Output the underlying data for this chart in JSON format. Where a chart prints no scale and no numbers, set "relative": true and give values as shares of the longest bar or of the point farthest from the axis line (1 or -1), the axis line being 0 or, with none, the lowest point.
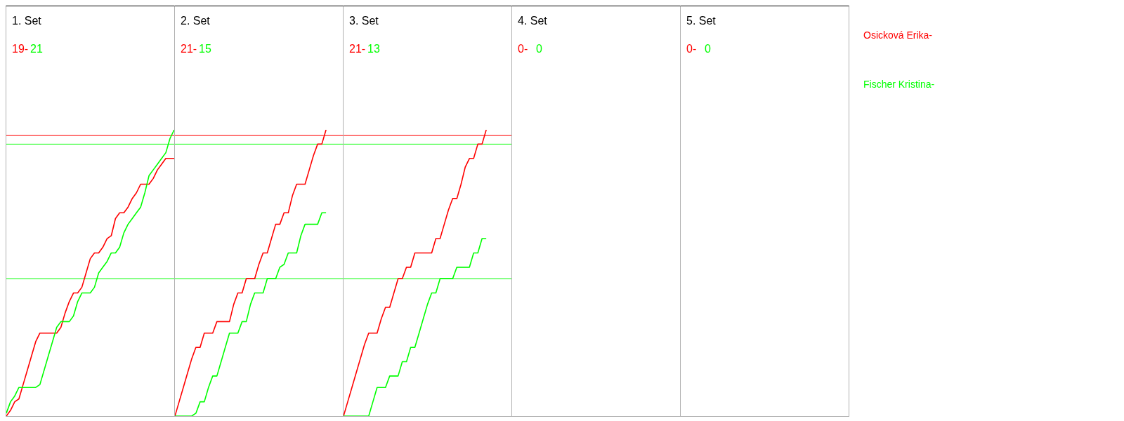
{
  "chart_data": [
    {
      "type": "line",
      "title": "1. Set",
      "annotations": [
        "19-",
        "21"
      ],
      "categories": [
        null,
        null,
        null,
        null,
        null,
        null,
        null,
        null,
        null,
        null,
        null,
        null,
        null,
        null,
        null,
        null,
        null,
        null,
        null,
        null,
        null,
        null,
        null,
        null,
        null,
        null,
        null,
        null,
        null,
        null,
        null,
        null,
        null,
        null,
        null,
        null,
        null,
        null,
        null,
        null,
        null
      ],
      "relative": true,
      "tick_labels": false,
      "legend": "right",
      "series": [
        {
          "name": "Osicková Erika-",
          "color": "#ff0000",
          "values": [
            0,
            0.02,
            0.05,
            0.06,
            0.11,
            0.16,
            0.21,
            0.26,
            0.29,
            0.29,
            0.29,
            0.29,
            0.29,
            0.31,
            0.36,
            0.4,
            0.43,
            0.43,
            0.45,
            0.5,
            0.55,
            0.57,
            0.57,
            0.59,
            0.62,
            0.63,
            0.69,
            0.71,
            0.71,
            0.73,
            0.76,
            0.78,
            0.81,
            0.81,
            0.81,
            0.83,
            0.86,
            0.88,
            0.9,
            0.9,
            0.9
          ]
        },
        {
          "name": "Fischer Kristina-",
          "color": "#00ff00",
          "values": [
            0.01,
            0.05,
            0.07,
            0.1,
            0.1,
            0.1,
            0.1,
            0.1,
            0.11,
            0.16,
            0.21,
            0.26,
            0.31,
            0.33,
            0.33,
            0.33,
            0.35,
            0.4,
            0.43,
            0.43,
            0.43,
            0.45,
            0.5,
            0.52,
            0.54,
            0.57,
            0.57,
            0.59,
            0.64,
            0.67,
            0.69,
            0.71,
            0.73,
            0.78,
            0.84,
            0.86,
            0.88,
            0.9,
            0.92,
            0.97,
            1
          ]
        }
      ],
      "ref_lines": [
        {
          "axis": "y",
          "value": 0.98,
          "color": "#ff0000"
        },
        {
          "axis": "y",
          "value": 0.95,
          "color": "#00ff00"
        },
        {
          "axis": "y",
          "value": 0.48,
          "color": "#00ff00"
        }
      ]
    },
    {
      "type": "line",
      "title": "2. Set",
      "annotations": [
        "21-",
        "15"
      ],
      "categories": [
        null,
        null,
        null,
        null,
        null,
        null,
        null,
        null,
        null,
        null,
        null,
        null,
        null,
        null,
        null,
        null,
        null,
        null,
        null,
        null,
        null,
        null,
        null,
        null,
        null,
        null,
        null,
        null,
        null,
        null,
        null,
        null,
        null,
        null,
        null,
        null,
        null,
        null,
        null,
        null,
        null
      ],
      "relative": true,
      "tick_labels": false,
      "series": [
        {
          "color": "#ff0000",
          "values": [
            0,
            0.05,
            0.1,
            0.15,
            0.2,
            0.24,
            0.24,
            0.29,
            0.29,
            0.29,
            0.33,
            0.33,
            0.33,
            0.33,
            0.39,
            0.43,
            0.43,
            0.48,
            0.48,
            0.48,
            0.53,
            0.57,
            0.57,
            0.62,
            0.67,
            0.67,
            0.71,
            0.71,
            0.77,
            0.81,
            0.81,
            0.81,
            0.86,
            0.91,
            0.95,
            0.95,
            1,
            null,
            null,
            null,
            null
          ]
        },
        {
          "color": "#00ff00",
          "values": [
            0,
            0,
            0,
            0,
            0,
            0.01,
            0.05,
            0.05,
            0.1,
            0.14,
            0.14,
            0.19,
            0.24,
            0.29,
            0.29,
            0.29,
            0.33,
            0.33,
            0.39,
            0.43,
            0.43,
            0.43,
            0.48,
            0.48,
            0.48,
            0.52,
            0.53,
            0.57,
            0.57,
            0.57,
            0.63,
            0.67,
            0.67,
            0.67,
            0.67,
            0.71,
            0.71,
            null,
            null,
            null,
            null
          ]
        }
      ],
      "ref_lines": [
        {
          "axis": "y",
          "value": 0.98,
          "color": "#ff0000"
        },
        {
          "axis": "y",
          "value": 0.95,
          "color": "#00ff00"
        },
        {
          "axis": "y",
          "value": 0.48,
          "color": "#00ff00"
        }
      ]
    },
    {
      "type": "line",
      "title": "3. Set",
      "annotations": [
        "21-",
        "13"
      ],
      "categories": [
        null,
        null,
        null,
        null,
        null,
        null,
        null,
        null,
        null,
        null,
        null,
        null,
        null,
        null,
        null,
        null,
        null,
        null,
        null,
        null,
        null,
        null,
        null,
        null,
        null,
        null,
        null,
        null,
        null,
        null,
        null,
        null,
        null,
        null,
        null,
        null,
        null,
        null,
        null,
        null,
        null
      ],
      "relative": true,
      "tick_labels": false,
      "series": [
        {
          "color": "#ff0000",
          "values": [
            0,
            0.05,
            0.1,
            0.15,
            0.2,
            0.25,
            0.29,
            0.29,
            0.29,
            0.34,
            0.38,
            0.38,
            0.43,
            0.48,
            0.48,
            0.52,
            0.52,
            0.57,
            0.57,
            0.57,
            0.57,
            0.57,
            0.62,
            0.62,
            0.67,
            0.72,
            0.76,
            0.76,
            0.81,
            0.87,
            0.9,
            0.9,
            0.95,
            0.95,
            1,
            null,
            null,
            null,
            null,
            null,
            null
          ]
        },
        {
          "color": "#00ff00",
          "values": [
            0,
            0,
            0,
            0,
            0,
            0,
            0,
            0.05,
            0.1,
            0.1,
            0.1,
            0.14,
            0.14,
            0.14,
            0.19,
            0.19,
            0.24,
            0.24,
            0.29,
            0.34,
            0.39,
            0.43,
            0.43,
            0.48,
            0.48,
            0.48,
            0.48,
            0.52,
            0.52,
            0.52,
            0.52,
            0.57,
            0.57,
            0.62,
            0.62,
            null,
            null,
            null,
            null,
            null,
            null
          ]
        }
      ],
      "ref_lines": [
        {
          "axis": "y",
          "value": 0.98,
          "color": "#ff0000"
        },
        {
          "axis": "y",
          "value": 0.95,
          "color": "#00ff00"
        },
        {
          "axis": "y",
          "value": 0.48,
          "color": "#00ff00"
        }
      ]
    },
    {
      "type": "other",
      "title": "4. Set",
      "annotations": [
        "0-",
        "0"
      ],
      "colors": [
        "#ff0000",
        "#00ff00"
      ]
    },
    {
      "type": "other",
      "title": "5. Set",
      "annotations": [
        "0-",
        "0"
      ],
      "colors": [
        "#ff0000",
        "#00ff00"
      ]
    }
  ]
}
